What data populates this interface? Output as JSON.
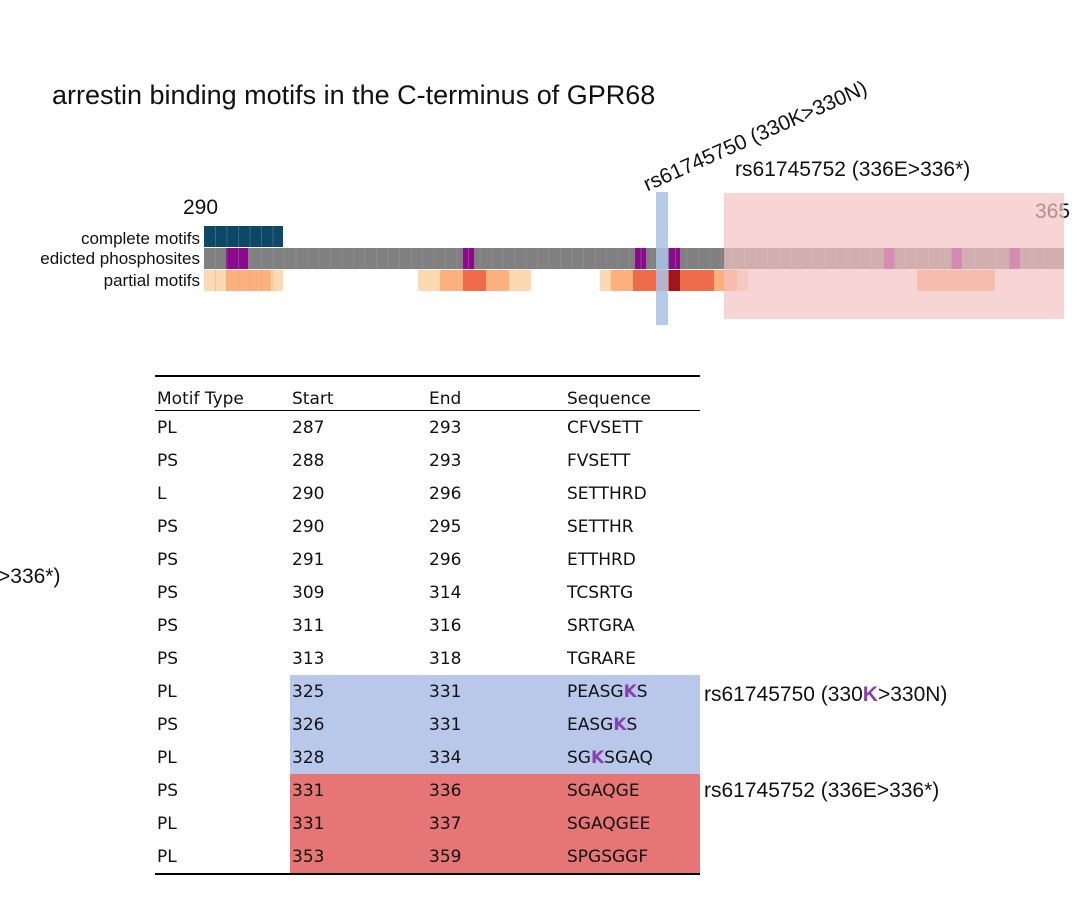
{
  "title": "arrestin binding motifs in the C-terminus of GPR68",
  "snp_labels": {
    "rotated": "rs61745750 (330K>330N)",
    "upper": "rs61745752 (336E>336*)",
    "left_cut": ">336*)"
  },
  "ticks": {
    "start": "290",
    "end": "365"
  },
  "tracks": {
    "complete": "complete motifs",
    "phospho": "edicted phosphosites",
    "partial": "partial motifs"
  },
  "colors": {
    "complete_motif": "#0d4868",
    "track_gray": "#808080",
    "phosphosite": "#8b0a8b",
    "partial_light": "#fcd9b1",
    "partial_mid": "#fbb07e",
    "partial_dark": "#ef6c4a",
    "partial_darkest": "#a3141c",
    "snp1_highlight": "#b9c8ea",
    "snp2_highlight": "#f4c3c3",
    "table_red": "#e67576",
    "variant_residue": "#8a3fb0"
  },
  "table": {
    "headers": [
      "Motif Type",
      "Start",
      "End",
      "Sequence"
    ],
    "rows": [
      {
        "type": "PL",
        "start": "287",
        "end": "293",
        "seq": "CFVSETT"
      },
      {
        "type": "PS",
        "start": "288",
        "end": "293",
        "seq": "FVSETT"
      },
      {
        "type": "L",
        "start": "290",
        "end": "296",
        "seq": "SETTHRD"
      },
      {
        "type": "PS",
        "start": "290",
        "end": "295",
        "seq": "SETTHR"
      },
      {
        "type": "PS",
        "start": "291",
        "end": "296",
        "seq": "ETTHRD"
      },
      {
        "type": "PS",
        "start": "309",
        "end": "314",
        "seq": "TCSRTG"
      },
      {
        "type": "PS",
        "start": "311",
        "end": "316",
        "seq": "SRTGRA"
      },
      {
        "type": "PS",
        "start": "313",
        "end": "318",
        "seq": "TGRARE"
      },
      {
        "type": "PL",
        "start": "325",
        "end": "331",
        "seq_pre": "PEASG",
        "seq_k": "K",
        "seq_post": "S",
        "hl": "blue"
      },
      {
        "type": "PS",
        "start": "326",
        "end": "331",
        "seq_pre": "EASG",
        "seq_k": "K",
        "seq_post": "S",
        "hl": "blue"
      },
      {
        "type": "PL",
        "start": "328",
        "end": "334",
        "seq_pre": "SG",
        "seq_k": "K",
        "seq_post": "SGAQ",
        "hl": "blue"
      },
      {
        "type": "PS",
        "start": "331",
        "end": "336",
        "seq": "SGAQGE",
        "hl": "red"
      },
      {
        "type": "PL",
        "start": "331",
        "end": "337",
        "seq": "SGAQGEE",
        "hl": "red"
      },
      {
        "type": "PL",
        "start": "353",
        "end": "359",
        "seq": "SPGSGGF",
        "hl": "red"
      }
    ]
  },
  "side_notes": {
    "snp1_pre": "rs61745750 (330",
    "snp1_k": "K",
    "snp1_post": ">330N)",
    "snp2": "rs61745752 (336E>336*)"
  }
}
